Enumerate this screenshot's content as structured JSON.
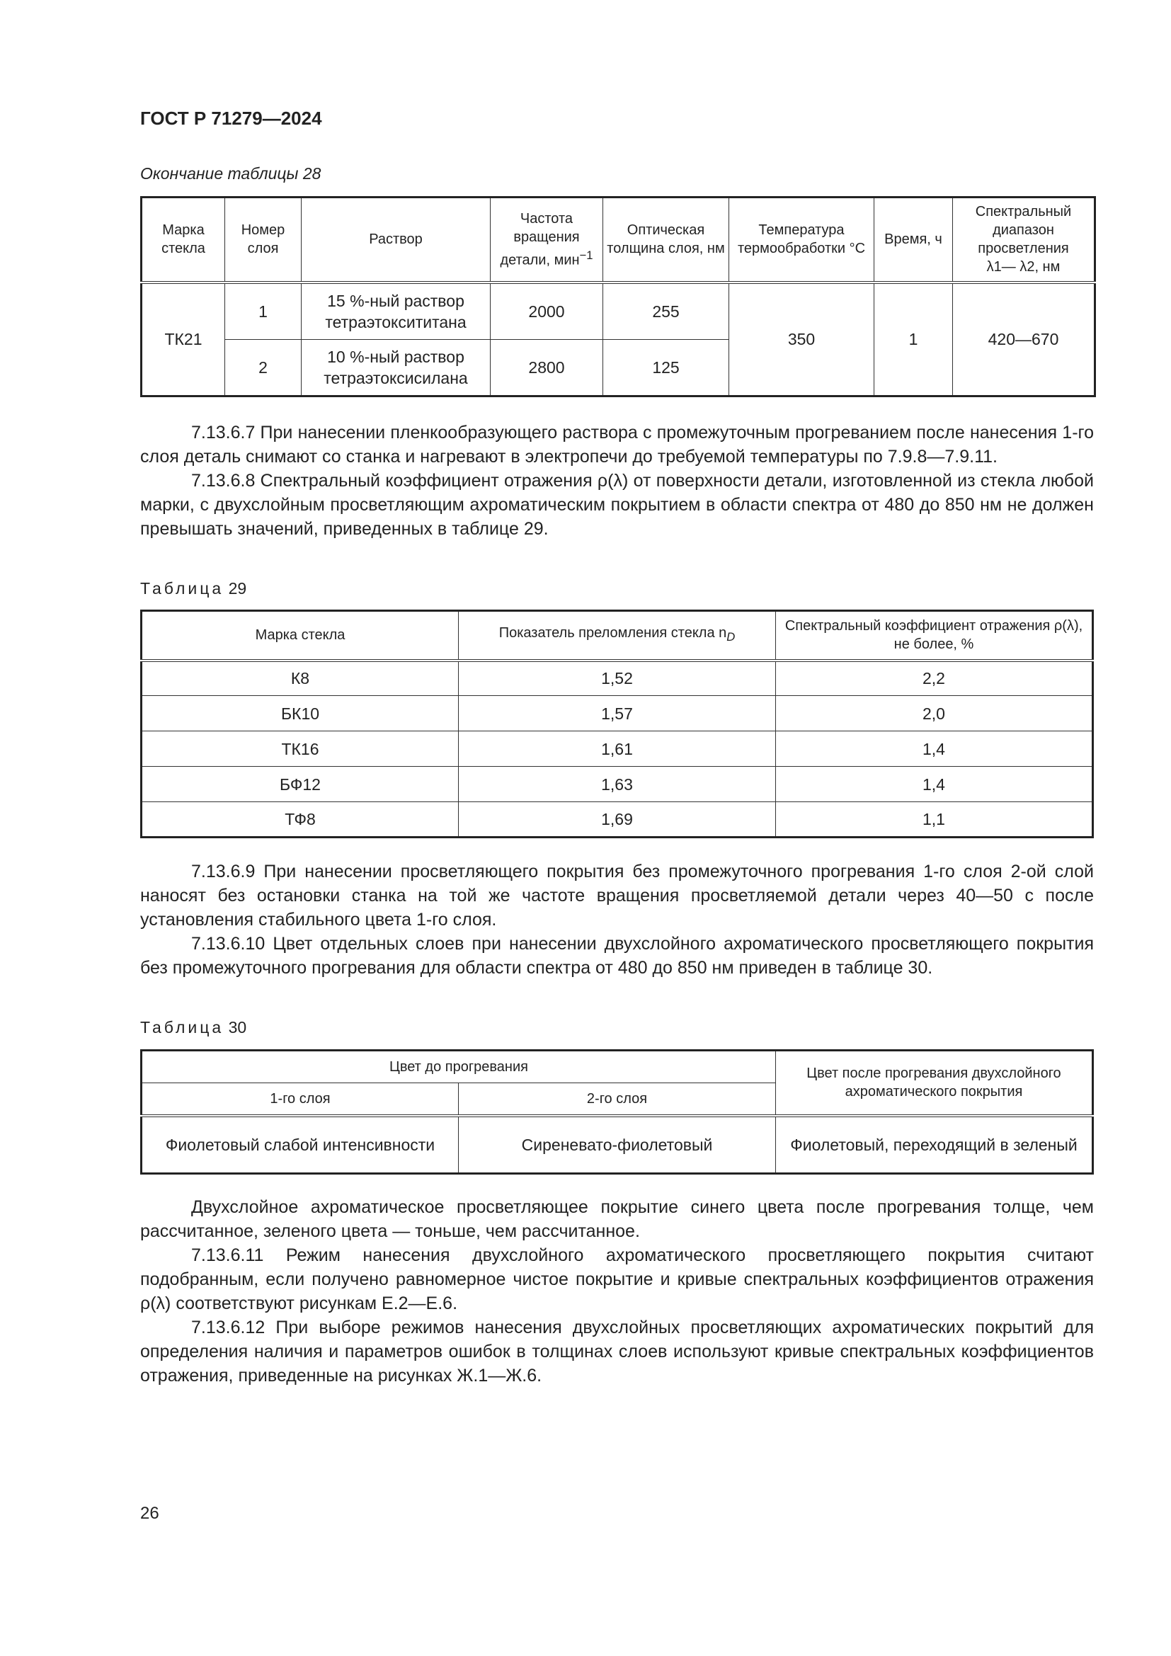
{
  "header": "ГОСТ Р 71279—2024",
  "table28": {
    "caption": "Окончание таблицы 28",
    "headers": [
      "Марка стекла",
      "Номер слоя",
      "Раствор",
      "Частота вращения детали, мин",
      "Оптическая толщина слоя, нм",
      "Температура термообработки °С",
      "Время, ч",
      "Спектральный диапазон просветления"
    ],
    "header_sup": "−1",
    "header_lambda": "λ1— λ2, нм",
    "glass": "ТК21",
    "rows": [
      {
        "layer": "1",
        "solution": "15 %-ный раствор тетраэтоксититана",
        "speed": "2000",
        "thickness": "255"
      },
      {
        "layer": "2",
        "solution": "10 %-ный раствор тетраэтоксисилана",
        "speed": "2800",
        "thickness": "125"
      }
    ],
    "temp": "350",
    "time": "1",
    "range": "420—670"
  },
  "p1": "7.13.6.7 При нанесении пленкообразующего раствора с промежуточным прогреванием после нанесения 1-го слоя деталь снимают со станка и нагревают в электропечи до требуемой температуры по 7.9.8—7.9.11.",
  "p2": "7.13.6.8 Спектральный коэффициент отражения ρ(λ) от поверхности детали, изготовленной из стекла любой марки, с двухслойным просветляющим ахроматическим покрытием в области спектра от 480 до 850 нм не должен превышать значений, приведенных в таблице 29.",
  "table29": {
    "caption_word": "Таблица",
    "caption_num": "29",
    "headers": [
      "Марка стекла",
      "Показатель преломления стекла n",
      "Спектральный коэффициент отражения ρ(λ), не более, %"
    ],
    "header_sub": "D",
    "rows": [
      [
        "К8",
        "1,52",
        "2,2"
      ],
      [
        "БК10",
        "1,57",
        "2,0"
      ],
      [
        "ТК16",
        "1,61",
        "1,4"
      ],
      [
        "БФ12",
        "1,63",
        "1,4"
      ],
      [
        "ТФ8",
        "1,69",
        "1,1"
      ]
    ]
  },
  "p3": "7.13.6.9 При нанесении просветляющего покрытия без промежуточного прогревания 1-го слоя 2-ой слой наносят без остановки станка на той же частоте вращения просветляемой детали через 40—50 с после установления стабильного цвета 1-го слоя.",
  "p4": "7.13.6.10 Цвет отдельных слоев при нанесении двухслойного ахроматического просветляющего покрытия без промежуточного прогревания для области спектра от 480 до 850 нм приведен в таблице 30.",
  "table30": {
    "caption_word": "Таблица",
    "caption_num": "30",
    "h_before": "Цвет до прогревания",
    "h_l1": "1-го слоя",
    "h_l2": "2-го слоя",
    "h_after": "Цвет после прогревания двухслойного ахроматического покрытия",
    "row": [
      "Фиолетовый слабой интенсивности",
      "Сиреневато-фиолетовый",
      "Фиолетовый, переходящий в зеленый"
    ]
  },
  "p5": "Двухслойное ахроматическое просветляющее покрытие синего цвета после прогревания толще, чем рассчитанное, зеленого цвета — тоньше, чем рассчитанное.",
  "p6": "7.13.6.11 Режим нанесения двухслойного ахроматического просветляющего покрытия считают подобранным, если получено равномерное чистое покрытие и кривые спектральных коэффициентов отражения ρ(λ) соответствуют рисункам Е.2—Е.6.",
  "p7": "7.13.6.12 При выборе режимов нанесения двухслойных просветляющих ахроматических покрытий для определения наличия и параметров ошибок в толщинах слоев используют кривые спектральных коэффициентов отражения, приведенные на рисунках Ж.1—Ж.6.",
  "page_number": "26"
}
